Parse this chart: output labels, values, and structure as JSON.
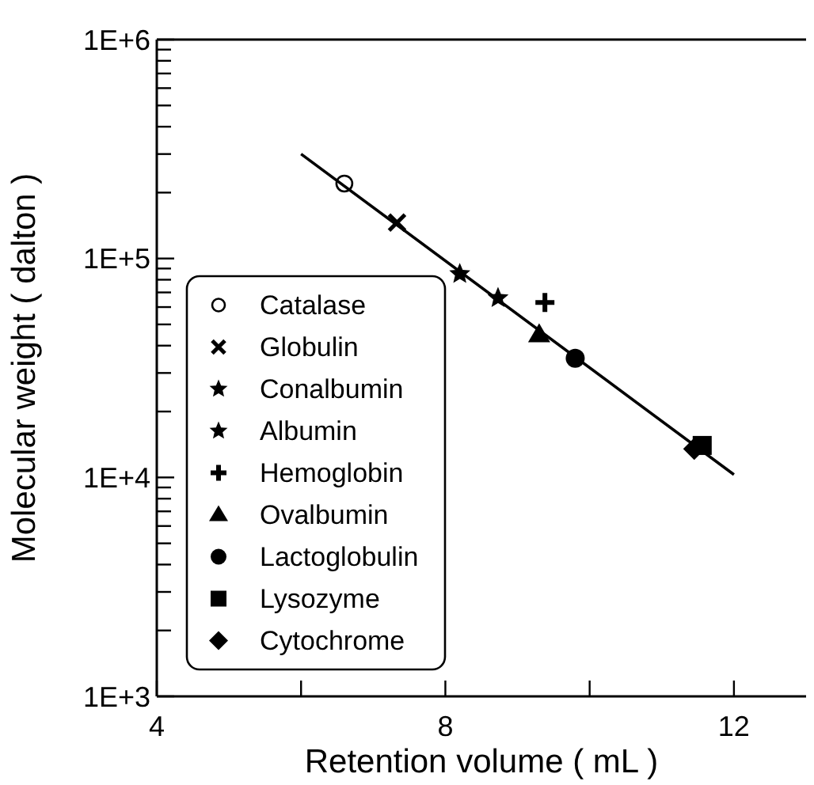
{
  "chart_data": {
    "type": "scatter",
    "xlabel": "Retention volume ( mL )",
    "ylabel": "Molecular weight ( dalton )",
    "log": "y",
    "xlim": [
      4,
      13
    ],
    "xticks": [
      4,
      {
        "value": 6,
        "label": null
      },
      8,
      {
        "value": 10,
        "label": null
      },
      12
    ],
    "ylim": [
      1000,
      1000000
    ],
    "yticks": [
      {
        "value": 1000,
        "label": "1E+3"
      },
      {
        "value": 2000,
        "label": null
      },
      {
        "value": 3000,
        "label": null
      },
      {
        "value": 4000,
        "label": null
      },
      {
        "value": 5000,
        "label": null
      },
      {
        "value": 6000,
        "label": null
      },
      {
        "value": 7000,
        "label": null
      },
      {
        "value": 8000,
        "label": null
      },
      {
        "value": 9000,
        "label": null
      },
      {
        "value": 10000,
        "label": "1E+4"
      },
      {
        "value": 20000,
        "label": null
      },
      {
        "value": 30000,
        "label": null
      },
      {
        "value": 40000,
        "label": null
      },
      {
        "value": 50000,
        "label": null
      },
      {
        "value": 60000,
        "label": null
      },
      {
        "value": 70000,
        "label": null
      },
      {
        "value": 80000,
        "label": null
      },
      {
        "value": 90000,
        "label": null
      },
      {
        "value": 100000,
        "label": "1E+5"
      },
      {
        "value": 200000,
        "label": null
      },
      {
        "value": 300000,
        "label": null
      },
      {
        "value": 400000,
        "label": null
      },
      {
        "value": 500000,
        "label": null
      },
      {
        "value": 600000,
        "label": null
      },
      {
        "value": 700000,
        "label": null
      },
      {
        "value": 800000,
        "label": null
      },
      {
        "value": 900000,
        "label": null
      },
      {
        "value": 1000000,
        "label": "1E+6"
      }
    ],
    "grid": false,
    "legend": "bottom left",
    "series": [
      {
        "name": "Catalase",
        "color": "#000000",
        "marker": "circle-open",
        "x": [
          6.6
        ],
        "values": [
          220000
        ]
      },
      {
        "name": "Globulin",
        "color": "#000000",
        "marker": "x",
        "x": [
          7.33
        ],
        "values": [
          146000
        ]
      },
      {
        "name": "Conalbumin",
        "color": "#000000",
        "marker": "star",
        "x": [
          8.2
        ],
        "values": [
          85000
        ]
      },
      {
        "name": "Albumin",
        "color": "#000000",
        "marker": "star",
        "x": [
          8.73
        ],
        "values": [
          66000
        ]
      },
      {
        "name": "Hemoglobin",
        "color": "#000000",
        "marker": "cross",
        "x": [
          9.38
        ],
        "values": [
          63000
        ]
      },
      {
        "name": "Ovalbumin",
        "color": "#000000",
        "marker": "triangle",
        "x": [
          9.3
        ],
        "values": [
          45000
        ]
      },
      {
        "name": "Lactoglobulin",
        "color": "#000000",
        "marker": "circle",
        "x": [
          9.8
        ],
        "values": [
          35000
        ]
      },
      {
        "name": "Lysozyme",
        "color": "#000000",
        "marker": "square",
        "x": [
          11.56
        ],
        "values": [
          14000
        ]
      },
      {
        "name": "Cytochrome",
        "color": "#000000",
        "marker": "diamond",
        "x": [
          11.45
        ],
        "values": [
          13500
        ]
      },
      {
        "type": "line",
        "color": "#000000",
        "marker": "none",
        "line_style": "solid",
        "x": [
          6,
          12
        ],
        "values": [
          300000,
          10300
        ]
      }
    ]
  }
}
